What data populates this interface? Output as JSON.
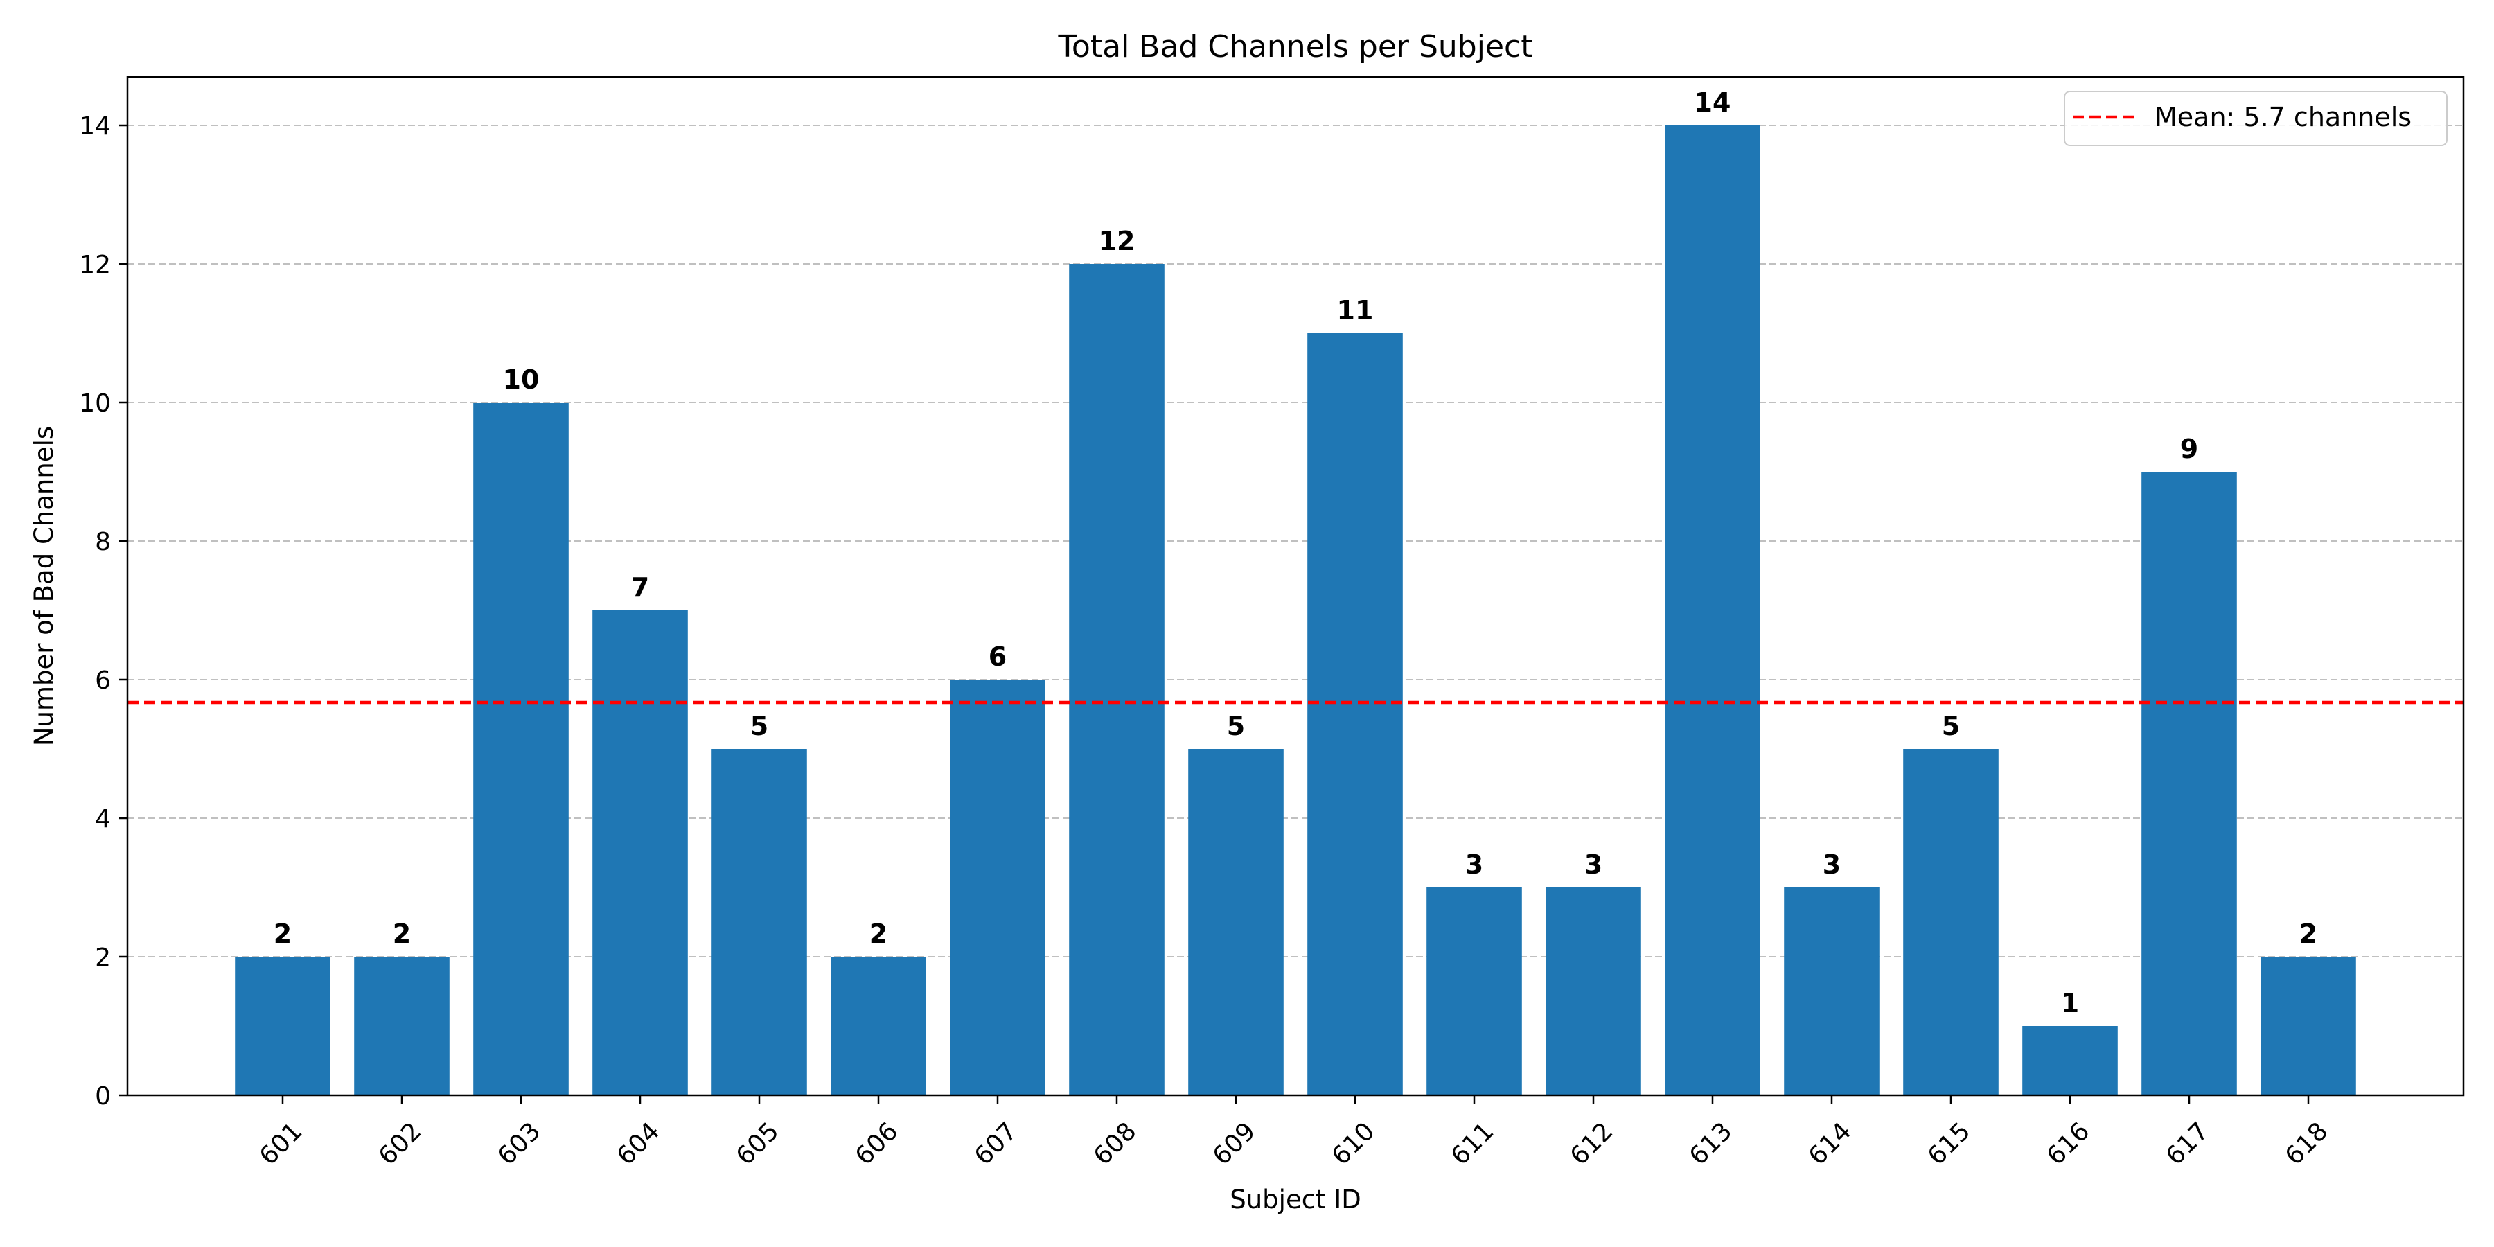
{
  "chart_data": {
    "type": "bar",
    "title": "Total Bad Channels per Subject",
    "xlabel": "Subject ID",
    "ylabel": "Number of Bad Channels",
    "categories": [
      "601",
      "602",
      "603",
      "604",
      "605",
      "606",
      "607",
      "608",
      "609",
      "610",
      "611",
      "612",
      "613",
      "614",
      "615",
      "616",
      "617",
      "618"
    ],
    "values": [
      2,
      2,
      10,
      7,
      5,
      2,
      6,
      12,
      5,
      11,
      3,
      3,
      14,
      3,
      5,
      1,
      9,
      2
    ],
    "bar_color": "#1f77b4",
    "ylim": [
      0,
      14.7
    ],
    "yticks": [
      0,
      2,
      4,
      6,
      8,
      10,
      12,
      14
    ],
    "grid": "y-dashed",
    "reference_line": {
      "value": 5.67,
      "label": "Mean: 5.7 channels",
      "color": "#ff0000",
      "style": "dashed"
    },
    "legend_position": "top-right",
    "x_tick_rotation": 45
  }
}
